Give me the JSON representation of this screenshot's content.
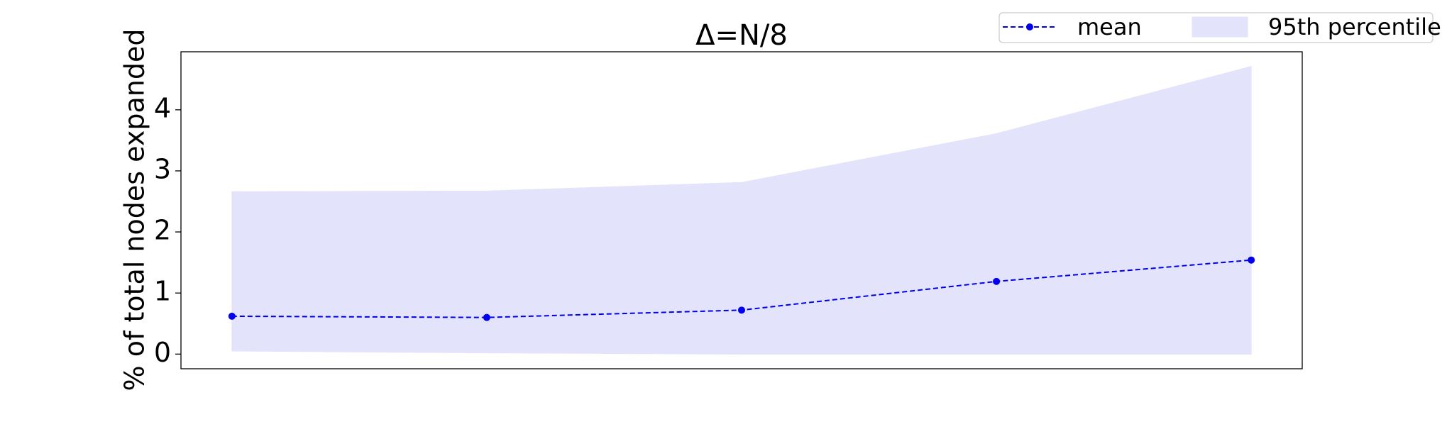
{
  "chart_data": {
    "type": "line",
    "title": "Δ=N/8",
    "ylabel": "% of total nodes expanded",
    "categories": [
      null,
      null,
      null,
      null,
      null
    ],
    "series": [
      {
        "name": "mean",
        "color": "#0000ee",
        "values": [
          0.62,
          0.6,
          0.72,
          1.19,
          1.54
        ]
      }
    ],
    "band": {
      "name": "95th percentile",
      "color": "#e3e3fb",
      "lower": [
        0.05,
        0.02,
        0.0,
        0.0,
        0.0
      ],
      "upper": [
        2.66,
        2.67,
        2.81,
        3.61,
        4.71
      ]
    },
    "ylim": [
      -0.24,
      4.95
    ],
    "yticks": [
      0,
      1,
      2,
      3,
      4
    ],
    "grid": false,
    "legend": "upper right"
  }
}
